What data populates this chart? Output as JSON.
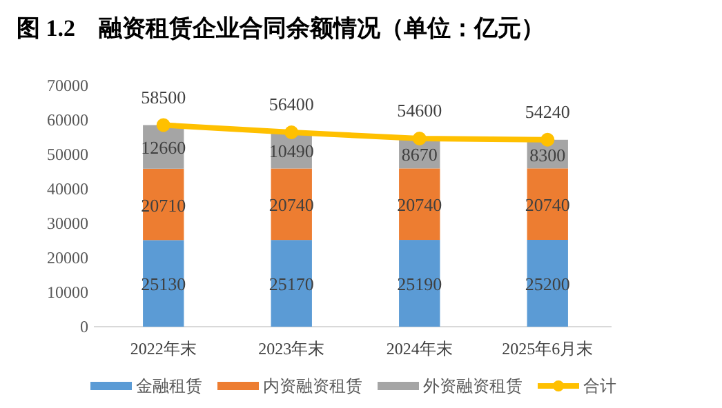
{
  "chart_data": {
    "type": "bar",
    "title": "图 1.2　融资租赁企业合同余额情况（单位：亿元）",
    "categories": [
      "2022年末",
      "2023年末",
      "2024年末",
      "2025年6月末"
    ],
    "stacked": true,
    "series": [
      {
        "name": "金融租赁",
        "color": "#5b9bd5",
        "values": [
          25130,
          25170,
          25190,
          25200
        ]
      },
      {
        "name": "内资融资租赁",
        "color": "#ed7d31",
        "values": [
          20710,
          20740,
          20740,
          20740
        ]
      },
      {
        "name": "外资融资租赁",
        "color": "#a5a5a5",
        "values": [
          12660,
          10490,
          8670,
          8300
        ]
      },
      {
        "name": "合计",
        "type": "line",
        "color": "#ffc000",
        "values": [
          58500,
          56400,
          54600,
          54240
        ],
        "marker": "circle"
      }
    ],
    "ylim": [
      0,
      70000
    ],
    "yticks": [
      0,
      10000,
      20000,
      30000,
      40000,
      50000,
      60000,
      70000
    ],
    "data_labels": true,
    "legend": "bottom",
    "grid": false
  }
}
